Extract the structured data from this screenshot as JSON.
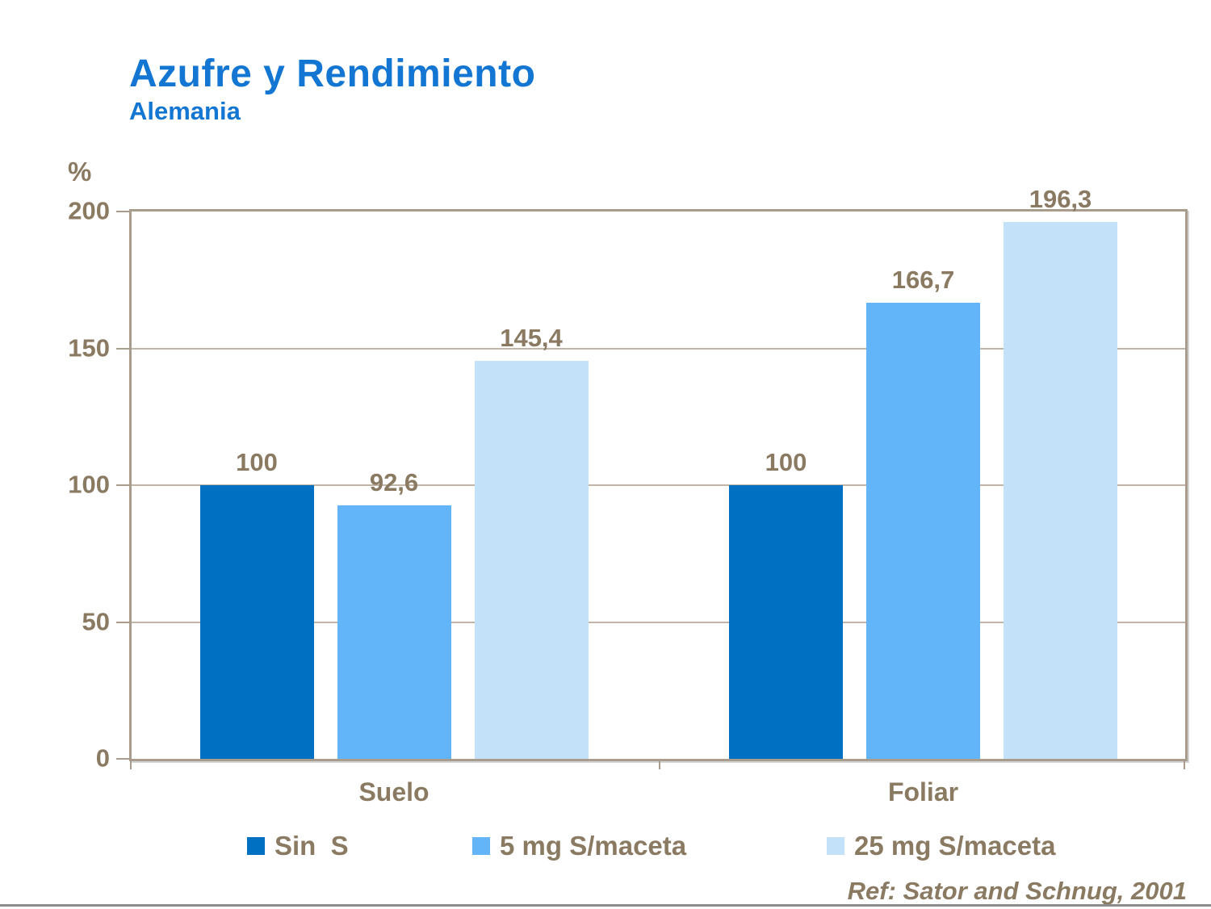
{
  "header": {
    "title": "Azufre y Rendimiento",
    "subtitle": "Alemania"
  },
  "colors": {
    "title_blue": "#1276d2",
    "text_brown": "#8a7a62",
    "frame_tan": "#a89c8c",
    "gridline_tan": "#c0b5a6",
    "series_dark_blue": "#0070c2",
    "series_medium_blue": "#61b5f8",
    "series_light_blue": "#c4e1fa",
    "bottom_rule_gray": "#8c8c8c"
  },
  "chart_data": {
    "type": "bar",
    "title": "Azufre y Rendimiento",
    "subtitle": "Alemania",
    "ylabel": "%",
    "ylim": [
      0,
      200
    ],
    "yticks": [
      0,
      50,
      100,
      150,
      200
    ],
    "grid": "horizontal",
    "legend_position": "bottom",
    "categories": [
      "Suelo",
      "Foliar"
    ],
    "series": [
      {
        "name": "Sin  S",
        "color": "#0070c2",
        "values": [
          100,
          100
        ],
        "value_labels": [
          "100",
          "100"
        ]
      },
      {
        "name": "5 mg S/maceta",
        "color": "#61b5f8",
        "values": [
          92.6,
          166.7
        ],
        "value_labels": [
          "92,6",
          "166,7"
        ]
      },
      {
        "name": "25 mg S/maceta",
        "color": "#c4e1fa",
        "values": [
          145.4,
          196.3
        ],
        "value_labels": [
          "145,4",
          "196,3"
        ]
      }
    ]
  },
  "footer": {
    "reference": "Ref: Sator and Schnug, 2001"
  }
}
